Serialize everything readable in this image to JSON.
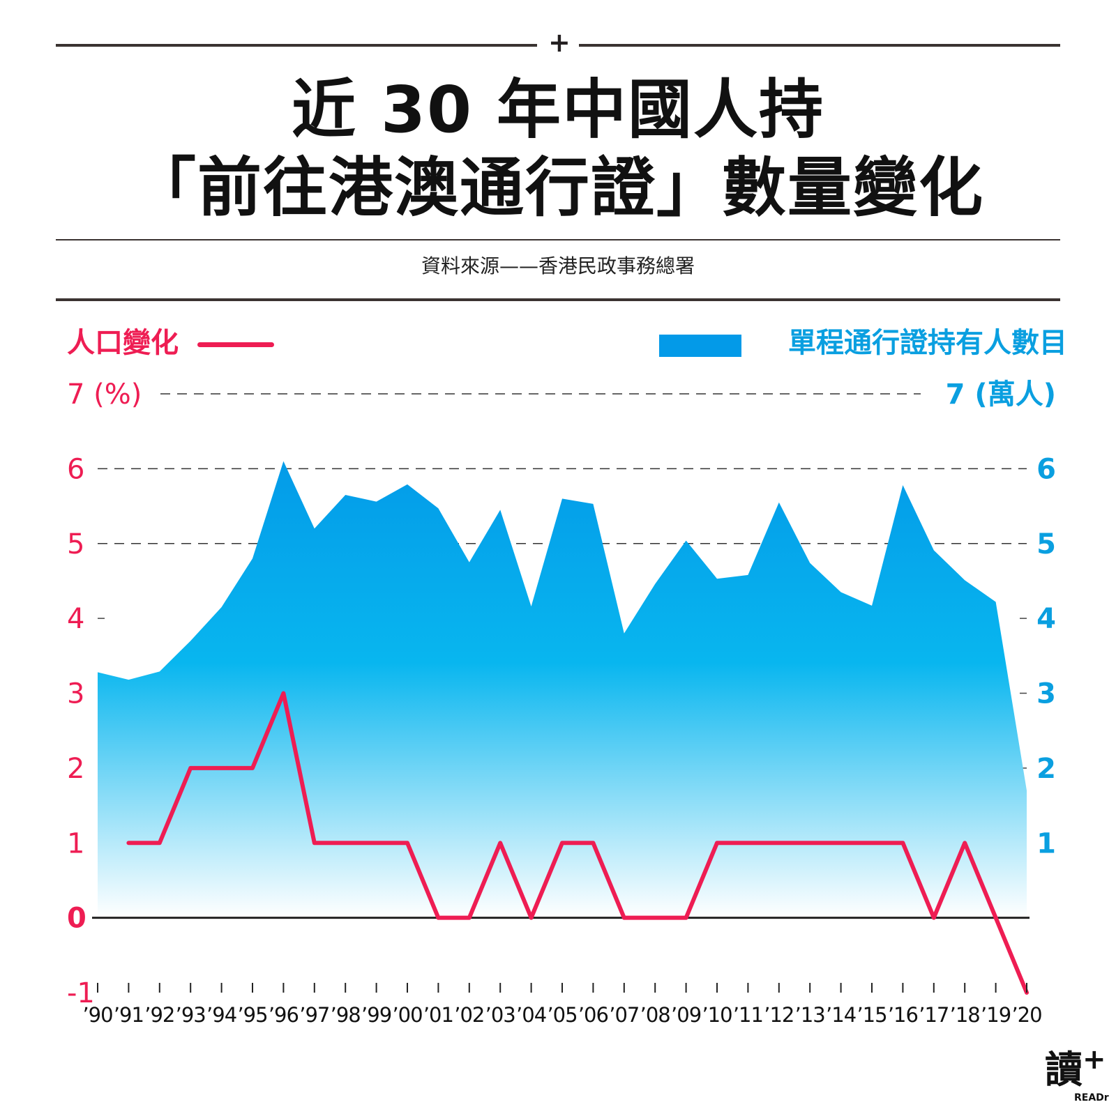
{
  "header": {
    "plus": "+",
    "title_line1": "近 30 年中國人持",
    "title_line2": "「前往港澳通行證」數量變化",
    "source": "資料來源——香港民政事務總署"
  },
  "legend": {
    "left_label": "人口變化",
    "right_label": "單程通行證持有人數目"
  },
  "colors": {
    "line": "#ee1d53",
    "area_top": "#039ae8",
    "area_mid": "#08b6ef",
    "area_bottom": "#ffffff",
    "right_axis": "#0a9fe0"
  },
  "logo": {
    "glyph": "讀",
    "plus": "+",
    "text": "READr"
  },
  "chart_data": {
    "type": "area+line",
    "categories": [
      "’90",
      "’91",
      "’92",
      "’93",
      "’94",
      "’95",
      "’96",
      "’97",
      "’98",
      "’99",
      "’00",
      "’01",
      "’02",
      "’03",
      "’04",
      "’05",
      "’06",
      "’07",
      "’08",
      "’09",
      "’10",
      "’11",
      "’12",
      "’13",
      "’14",
      "’15",
      "’16",
      "’17",
      "’18",
      "’19",
      "’20"
    ],
    "left_axis": {
      "ylim": [
        -1,
        7
      ],
      "ticks": [
        "-1",
        "0",
        "1",
        "2",
        "3",
        "4",
        "5",
        "6",
        "7 (%)"
      ],
      "tick_values": [
        -1,
        0,
        1,
        2,
        3,
        4,
        5,
        6,
        7
      ]
    },
    "right_axis": {
      "ylim": [
        -1,
        7
      ],
      "ticks": [
        "1",
        "2",
        "3",
        "4",
        "5",
        "6",
        "7 (萬人)"
      ],
      "tick_values": [
        1,
        2,
        3,
        4,
        5,
        6,
        7
      ]
    },
    "grid_dashed_at": [
      5,
      6,
      7
    ],
    "series": [
      {
        "name": "單程通行證持有人數目",
        "type": "area",
        "axis": "right",
        "values": [
          3.28,
          3.18,
          3.29,
          3.7,
          4.15,
          4.8,
          6.1,
          5.2,
          5.65,
          5.56,
          5.79,
          5.47,
          4.75,
          5.45,
          4.16,
          5.6,
          5.53,
          3.8,
          4.46,
          5.04,
          4.53,
          4.58,
          5.55,
          4.74,
          4.35,
          4.17,
          5.78,
          4.91,
          4.51,
          4.22,
          1.7
        ]
      },
      {
        "name": "人口變化",
        "type": "line",
        "axis": "left",
        "values": [
          null,
          1,
          1,
          2,
          2,
          2,
          3,
          1,
          1,
          1,
          1,
          0,
          0,
          1,
          0,
          1,
          1,
          0,
          0,
          0,
          1,
          1,
          1,
          1,
          1,
          1,
          1,
          0,
          1,
          0,
          -1
        ]
      }
    ]
  }
}
